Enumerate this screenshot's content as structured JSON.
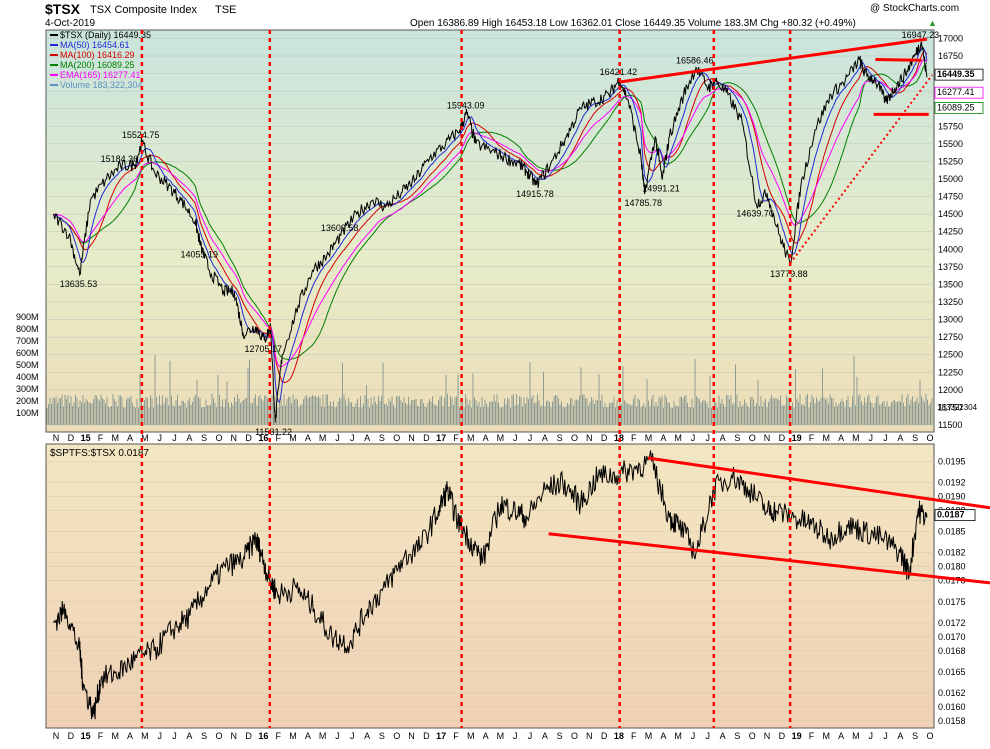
{
  "header": {
    "symbol": "$TSX",
    "index_name": "TSX Composite Index",
    "exchange": "TSE",
    "date": "4-Oct-2019",
    "copyright": "@ StockCharts.com",
    "quote": "Open 16386.89  High 16453.18  Low 16362.01  Close 16449.35  Volume 183.3M  Chg +80.32 (+0.49%)",
    "quote_arrow": "▲"
  },
  "colors": {
    "price_panel_top": "#c9e4dd",
    "price_panel_mid": "#e6ecc9",
    "price_panel_bottom": "#eeddb8",
    "ratio_panel_top": "#f2e6c2",
    "ratio_panel_bottom": "#f0d1b6",
    "price_line": "#000000",
    "ma50": "#1f2bd6",
    "ma100": "#d40000",
    "ma200": "#008000",
    "ema165": "#ff00ff",
    "volume": "#8e9c94",
    "annotation_red": "#ff0000"
  },
  "chart_data": [
    {
      "type": "line",
      "title": "$TSX TSX Composite Index TSE",
      "legend_placement": "top-left",
      "legend": [
        {
          "label": "$TSX (Daily) 16449.35",
          "color": "#000000"
        },
        {
          "label": "MA(50) 16454.61",
          "color": "#1f2bd6"
        },
        {
          "label": "MA(100) 16416.29",
          "color": "#d40000"
        },
        {
          "label": "MA(200) 16089.25",
          "color": "#008000"
        },
        {
          "label": "EMA(165) 16277.41",
          "color": "#ff00ff"
        },
        {
          "label": "Volume 183,322,304",
          "color": "#5f8fc0"
        }
      ],
      "x_ticks": [
        "N",
        "D",
        "15",
        "F",
        "M",
        "A",
        "M",
        "J",
        "J",
        "A",
        "S",
        "O",
        "N",
        "D",
        "16",
        "F",
        "M",
        "A",
        "M",
        "J",
        "J",
        "A",
        "S",
        "O",
        "N",
        "D",
        "17",
        "F",
        "M",
        "A",
        "M",
        "J",
        "J",
        "A",
        "S",
        "O",
        "N",
        "D",
        "18",
        "F",
        "M",
        "A",
        "M",
        "J",
        "J",
        "A",
        "S",
        "O",
        "N",
        "D",
        "19",
        "F",
        "M",
        "A",
        "M",
        "J",
        "J",
        "A",
        "S",
        "O"
      ],
      "x_ticks_bold": [
        "15",
        "16",
        "17",
        "18",
        "19"
      ],
      "ylim": [
        11400,
        17120
      ],
      "y_ticks": [
        11500,
        11750,
        12000,
        12250,
        12500,
        12750,
        13000,
        13250,
        13500,
        13750,
        14000,
        14250,
        14500,
        14750,
        15000,
        15250,
        15500,
        15750,
        16000,
        16250,
        16500,
        16750,
        17000
      ],
      "grid": true,
      "dates": [
        2014.833,
        2014.92,
        2014.98,
        2015.04,
        2015.13,
        2015.21,
        2015.29,
        2015.33,
        2015.4,
        2015.48,
        2015.55,
        2015.63,
        2015.66,
        2015.71,
        2015.79,
        2015.85,
        2015.9,
        2015.97,
        2016.02,
        2016.055,
        2016.08,
        2016.12,
        2016.21,
        2016.29,
        2016.37,
        2016.45,
        2016.54,
        2016.63,
        2016.7,
        2016.79,
        2016.87,
        2016.95,
        2017.04,
        2017.12,
        2017.16,
        2017.21,
        2017.3,
        2017.38,
        2017.46,
        2017.5,
        2017.55,
        2017.63,
        2017.72,
        2017.8,
        2017.88,
        2017.96,
        2018.02,
        2018.07,
        2018.14,
        2018.16,
        2018.22,
        2018.26,
        2018.3,
        2018.38,
        2018.45,
        2018.52,
        2018.56,
        2018.63,
        2018.71,
        2018.79,
        2018.85,
        2018.92,
        2018.98,
        2019.04,
        2019.12,
        2019.21,
        2019.29,
        2019.37,
        2019.4,
        2019.46,
        2019.52,
        2019.57,
        2019.63,
        2019.69,
        2019.72,
        2019.75
      ],
      "price": [
        14500,
        14200,
        13636,
        14700,
        15000,
        15184,
        15200,
        15525,
        15100,
        14900,
        14700,
        14400,
        14053,
        13700,
        13400,
        13400,
        12800,
        12900,
        12706,
        12900,
        11531,
        12500,
        13200,
        13700,
        13900,
        14200,
        14500,
        14700,
        14600,
        14800,
        15000,
        15300,
        15500,
        15700,
        15943,
        15500,
        15400,
        15300,
        15200,
        15100,
        14916,
        15200,
        15600,
        16000,
        16100,
        16200,
        16421,
        16100,
        15300,
        14786,
        15600,
        14991,
        15600,
        16200,
        16586,
        16300,
        16400,
        16200,
        15800,
        14640,
        14800,
        14200,
        13779,
        14900,
        15700,
        16200,
        16400,
        16700,
        16500,
        16400,
        16100,
        16300,
        16500,
        16800,
        16947,
        16449
      ],
      "annotations": [
        "15184.36",
        "15524.75",
        "13635.53",
        "14053.19",
        "12705.17",
        "11531.22",
        "13609.58",
        "15943.09",
        "14915.78",
        "16421.42",
        "16586.46",
        "14785.78",
        "14991.21",
        "14639.70",
        "13779.88",
        "16947.23"
      ],
      "last_value_labels": [
        "16449.35",
        "16277.41",
        "16089.25"
      ],
      "volume_axis_label": "183322304",
      "volume_ticks": [
        "900M",
        "800M",
        "700M",
        "600M",
        "500M",
        "400M",
        "300M",
        "200M",
        "100M"
      ],
      "volume_tick_values": [
        900,
        800,
        700,
        600,
        500,
        400,
        300,
        200,
        100
      ],
      "volume_ylim": [
        0,
        1000
      ]
    },
    {
      "type": "line",
      "title": "$SPTFS:$TSX 0.0187",
      "ylim": [
        0.0157,
        0.01975
      ],
      "y_ticks": [
        0.0158,
        0.016,
        0.0162,
        0.0165,
        0.0168,
        0.017,
        0.0172,
        0.0175,
        0.0178,
        0.018,
        0.0182,
        0.0185,
        0.0188,
        0.019,
        0.0192,
        0.0195
      ],
      "y_tick_labels": [
        "0.0158",
        "0.0160",
        "0.0162",
        "0.0165",
        "0.0168",
        "0.0170",
        "0.0172",
        "0.0175",
        "0.0178",
        "0.0180",
        "0.0182",
        "0.0185",
        "0.0188",
        "0.0190",
        "0.0192",
        "0.0195"
      ],
      "grid": true,
      "last_value_label": "0.0187",
      "dates": [
        2014.833,
        2014.9,
        2014.98,
        2015.0,
        2015.06,
        2015.1,
        2015.2,
        2015.3,
        2015.4,
        2015.5,
        2015.6,
        2015.7,
        2015.8,
        2015.9,
        2015.97,
        2016.0,
        2016.05,
        2016.1,
        2016.2,
        2016.3,
        2016.4,
        2016.5,
        2016.6,
        2016.7,
        2016.8,
        2016.9,
        2017.0,
        2017.05,
        2017.1,
        2017.17,
        2017.25,
        2017.35,
        2017.42,
        2017.5,
        2017.6,
        2017.7,
        2017.8,
        2017.9,
        2018.0,
        2018.1,
        2018.2,
        2018.3,
        2018.35,
        2018.45,
        2018.55,
        2018.65,
        2018.75,
        2018.85,
        2018.9,
        2019.0,
        2019.1,
        2019.2,
        2019.3,
        2019.4,
        2019.5,
        2019.6,
        2019.65,
        2019.7,
        2019.75
      ],
      "values": [
        0.0172,
        0.0174,
        0.0168,
        0.0163,
        0.0159,
        0.0164,
        0.0165,
        0.0167,
        0.0168,
        0.0171,
        0.0173,
        0.0177,
        0.018,
        0.0181,
        0.0184,
        0.0182,
        0.0178,
        0.0176,
        0.0177,
        0.0174,
        0.017,
        0.0169,
        0.0174,
        0.0177,
        0.0181,
        0.0183,
        0.0188,
        0.0191,
        0.0187,
        0.0184,
        0.0181,
        0.0189,
        0.0188,
        0.0187,
        0.0191,
        0.0192,
        0.0189,
        0.0193,
        0.0193,
        0.0194,
        0.0195,
        0.0187,
        0.0186,
        0.0182,
        0.0191,
        0.0193,
        0.0191,
        0.0188,
        0.0188,
        0.0187,
        0.0186,
        0.0184,
        0.0186,
        0.0185,
        0.0184,
        0.0182,
        0.0179,
        0.0188,
        0.0187
      ]
    }
  ]
}
